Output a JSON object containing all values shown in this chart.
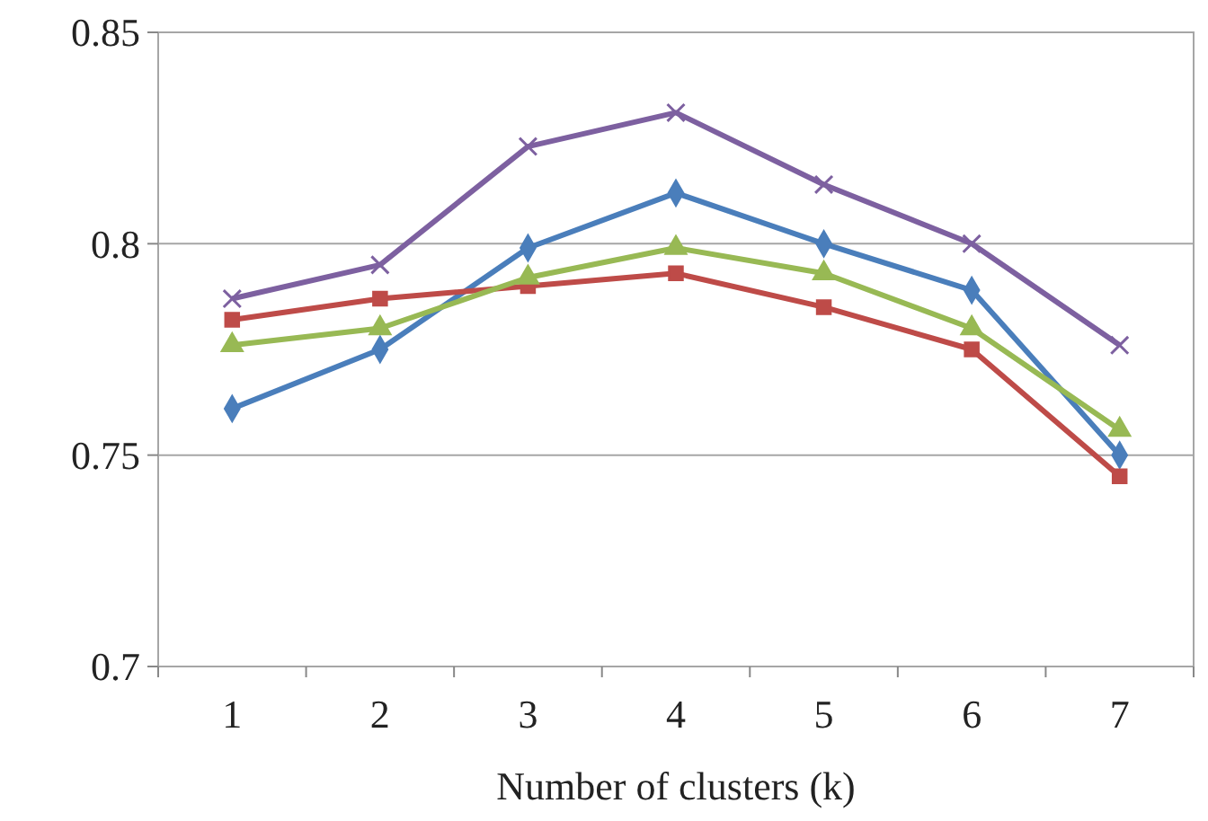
{
  "chart_data": {
    "type": "line",
    "xlabel": "Number of clusters (k)",
    "categories": [
      "1",
      "2",
      "3",
      "4",
      "5",
      "6",
      "7"
    ],
    "ylim": [
      0.7,
      0.85
    ],
    "yticks": [
      0.7,
      0.75,
      0.8,
      0.85
    ],
    "grid": "y",
    "series": [
      {
        "color": "#4a7ebb",
        "marker": "diamond",
        "values": [
          0.761,
          0.775,
          0.799,
          0.812,
          0.8,
          0.789,
          0.75
        ]
      },
      {
        "color": "#be4b48",
        "marker": "square",
        "values": [
          0.782,
          0.787,
          0.79,
          0.793,
          0.785,
          0.775,
          0.745
        ]
      },
      {
        "color": "#98b954",
        "marker": "triangle",
        "values": [
          0.776,
          0.78,
          0.792,
          0.799,
          0.793,
          0.78,
          0.756
        ]
      },
      {
        "color": "#7d60a0",
        "marker": "cross",
        "values": [
          0.787,
          0.795,
          0.823,
          0.831,
          0.814,
          0.8,
          0.776
        ]
      }
    ]
  }
}
